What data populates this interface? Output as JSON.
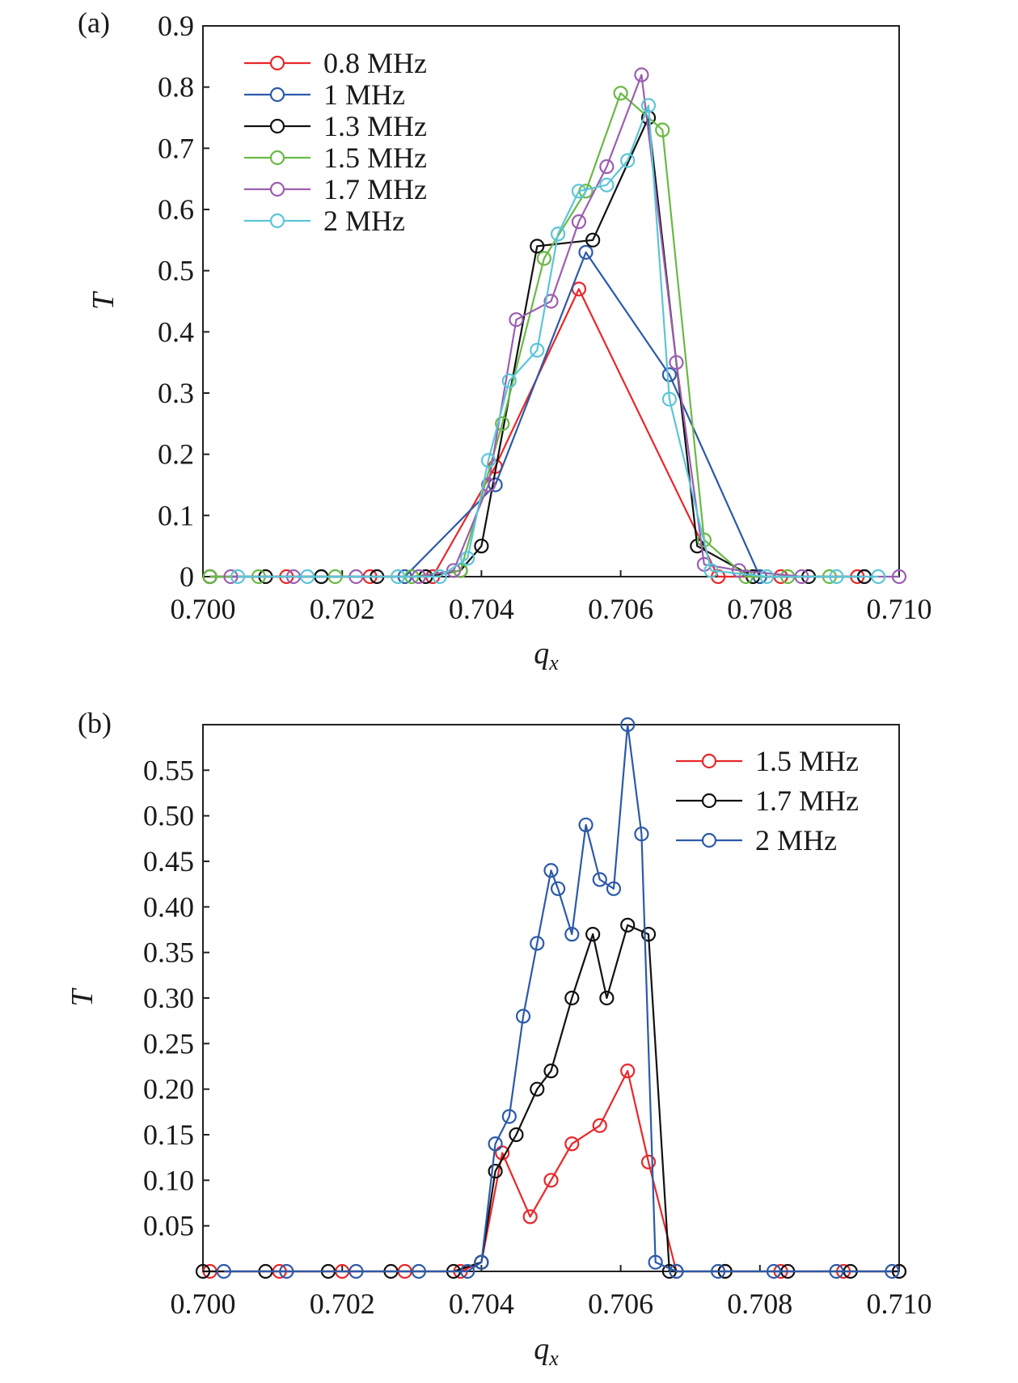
{
  "chart_data": [
    {
      "type": "line",
      "panel_label": "(a)",
      "xlabel": "q",
      "xlabel_sub": "x",
      "ylabel": "T",
      "xlim": [
        0.7,
        0.71
      ],
      "ylim": [
        0,
        0.9
      ],
      "xticks": [
        "0.700",
        "0.702",
        "0.704",
        "0.706",
        "0.708",
        "0.710"
      ],
      "yticks": [
        "0",
        "0.1",
        "0.2",
        "0.3",
        "0.4",
        "0.5",
        "0.6",
        "0.7",
        "0.8",
        "0.9"
      ],
      "legend_position": "top-left",
      "series": [
        {
          "name": "0.8 MHz",
          "color": "#e8272a",
          "x": [
            0.7001,
            0.7012,
            0.7024,
            0.7033,
            0.7042,
            0.7054,
            0.7074,
            0.7083,
            0.7094
          ],
          "y": [
            0,
            0,
            0,
            0,
            0.18,
            0.47,
            0,
            0,
            0
          ]
        },
        {
          "name": "1 MHz",
          "color": "#2c5aa8",
          "x": [
            0.7001,
            0.7017,
            0.7029,
            0.7042,
            0.7055,
            0.7067,
            0.708,
            0.7095
          ],
          "y": [
            0,
            0,
            0,
            0.15,
            0.53,
            0.33,
            0,
            0
          ]
        },
        {
          "name": "1.3 MHz",
          "color": "#111111",
          "x": [
            0.7001,
            0.7009,
            0.7017,
            0.7025,
            0.7032,
            0.7037,
            0.704,
            0.7048,
            0.7056,
            0.7064,
            0.7071,
            0.7079,
            0.7087,
            0.7095
          ],
          "y": [
            0,
            0,
            0,
            0,
            0,
            0.01,
            0.05,
            0.54,
            0.55,
            0.75,
            0.05,
            0,
            0,
            0
          ]
        },
        {
          "name": "1.5 MHz",
          "color": "#6ab945",
          "x": [
            0.7001,
            0.7008,
            0.7019,
            0.703,
            0.7037,
            0.7043,
            0.7049,
            0.7055,
            0.706,
            0.7066,
            0.7072,
            0.7078,
            0.7084,
            0.709
          ],
          "y": [
            0,
            0,
            0,
            0,
            0.01,
            0.25,
            0.52,
            0.63,
            0.79,
            0.73,
            0.06,
            0,
            0,
            0
          ]
        },
        {
          "name": "1.7 MHz",
          "color": "#9b5fb0",
          "x": [
            0.7004,
            0.7013,
            0.7022,
            0.7031,
            0.7036,
            0.7041,
            0.7045,
            0.705,
            0.7054,
            0.7058,
            0.7063,
            0.7068,
            0.7072,
            0.7077,
            0.7086,
            0.71
          ],
          "y": [
            0,
            0,
            0,
            0,
            0.01,
            0.15,
            0.42,
            0.45,
            0.58,
            0.67,
            0.82,
            0.35,
            0.02,
            0.01,
            0,
            0
          ]
        },
        {
          "name": "2 MHz",
          "color": "#5cc5d8",
          "x": [
            0.7005,
            0.7015,
            0.7028,
            0.7034,
            0.7038,
            0.7041,
            0.7044,
            0.7048,
            0.7051,
            0.7054,
            0.7058,
            0.7061,
            0.7064,
            0.7067,
            0.7073,
            0.7081,
            0.7091,
            0.7097
          ],
          "y": [
            0,
            0,
            0,
            0,
            0.03,
            0.19,
            0.32,
            0.37,
            0.56,
            0.63,
            0.64,
            0.68,
            0.77,
            0.29,
            0.01,
            0,
            0,
            0
          ]
        }
      ]
    },
    {
      "type": "line",
      "panel_label": "(b)",
      "xlabel": "q",
      "xlabel_sub": "x",
      "ylabel": "T",
      "xlim": [
        0.7,
        0.71
      ],
      "ylim": [
        0,
        0.6
      ],
      "xticks": [
        "0.700",
        "0.702",
        "0.704",
        "0.706",
        "0.708",
        "0.710"
      ],
      "yticks": [
        "0.05",
        "0.10",
        "0.15",
        "0.20",
        "0.25",
        "0.30",
        "0.35",
        "0.40",
        "0.45",
        "0.50",
        "0.55"
      ],
      "legend_position": "top-right",
      "series": [
        {
          "name": "1.5 MHz",
          "color": "#e8272a",
          "x": [
            0.7001,
            0.7011,
            0.702,
            0.7029,
            0.7037,
            0.704,
            0.7043,
            0.7047,
            0.705,
            0.7053,
            0.7057,
            0.7061,
            0.7064,
            0.7068,
            0.7075,
            0.7083,
            0.7092,
            0.71
          ],
          "y": [
            0,
            0,
            0,
            0,
            0,
            0.01,
            0.13,
            0.06,
            0.1,
            0.14,
            0.16,
            0.22,
            0.12,
            0,
            0,
            0,
            0,
            0
          ]
        },
        {
          "name": "1.7 MHz",
          "color": "#111111",
          "x": [
            0.7,
            0.7009,
            0.7018,
            0.7027,
            0.7036,
            0.704,
            0.7042,
            0.7045,
            0.7048,
            0.705,
            0.7053,
            0.7056,
            0.7058,
            0.7061,
            0.7064,
            0.7067,
            0.7075,
            0.7084,
            0.7093,
            0.71
          ],
          "y": [
            0,
            0,
            0,
            0,
            0,
            0.01,
            0.11,
            0.15,
            0.2,
            0.22,
            0.3,
            0.37,
            0.3,
            0.38,
            0.37,
            0,
            0,
            0,
            0,
            0
          ]
        },
        {
          "name": "2 MHz",
          "color": "#2c5aa8",
          "x": [
            0.7003,
            0.7012,
            0.7022,
            0.7031,
            0.7038,
            0.704,
            0.7042,
            0.7044,
            0.7046,
            0.7048,
            0.705,
            0.7051,
            0.7053,
            0.7055,
            0.7057,
            0.7059,
            0.7061,
            0.7063,
            0.7065,
            0.7068,
            0.7074,
            0.7082,
            0.7091,
            0.7099
          ],
          "y": [
            0,
            0,
            0,
            0,
            0,
            0.01,
            0.14,
            0.17,
            0.28,
            0.36,
            0.44,
            0.42,
            0.37,
            0.49,
            0.43,
            0.42,
            0.6,
            0.48,
            0.01,
            0,
            0,
            0,
            0,
            0
          ]
        }
      ]
    }
  ]
}
